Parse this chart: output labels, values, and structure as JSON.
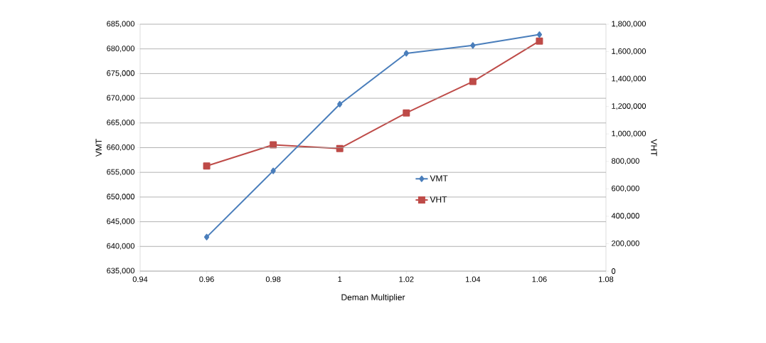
{
  "chart_data": {
    "type": "line",
    "xlabel": "Deman Multiplier",
    "ylabel": "VMT",
    "y2label": "VHT",
    "x": [
      0.96,
      0.98,
      1,
      1.02,
      1.04,
      1.06
    ],
    "series": [
      {
        "name": "VMT",
        "color": "#4a7ebb",
        "marker": "diamond",
        "values": [
          641900,
          655300,
          668800,
          679100,
          680700,
          682900
        ]
      },
      {
        "name": "VHT",
        "color": "#be4b48",
        "marker": "square",
        "axis": "y2",
        "values": [
          766000,
          921000,
          894000,
          1153000,
          1382000,
          1677000
        ]
      }
    ],
    "xlim": [
      0.94,
      1.08
    ],
    "xticks": [
      0.94,
      0.96,
      0.98,
      1,
      1.02,
      1.04,
      1.06,
      1.08
    ],
    "ylim": [
      635000,
      685000
    ],
    "yticks": [
      {
        "value": 635000,
        "label": "635,000"
      },
      {
        "value": 640000,
        "label": "640,000"
      },
      {
        "value": 645000,
        "label": "645,000"
      },
      {
        "value": 650000,
        "label": "650,000"
      },
      {
        "value": 655000,
        "label": "655,000"
      },
      {
        "value": 660000,
        "label": "660,000"
      },
      {
        "value": 665000,
        "label": "665,000"
      },
      {
        "value": 670000,
        "label": "670,000"
      },
      {
        "value": 675000,
        "label": "675,000"
      },
      {
        "value": 680000,
        "label": "680,000"
      },
      {
        "value": 685000,
        "label": "685,000"
      }
    ],
    "y2lim": [
      0,
      1800000
    ],
    "y2ticks": [
      0,
      {
        "value": 200000,
        "label": "200,000"
      },
      {
        "value": 400000,
        "label": "400,000"
      },
      {
        "value": 600000,
        "label": "600,000"
      },
      {
        "value": 800000,
        "label": "800,000"
      },
      {
        "value": 1000000,
        "label": "1,000,000"
      },
      {
        "value": 1200000,
        "label": "1,200,000"
      },
      {
        "value": 1400000,
        "label": "1,400,000"
      },
      {
        "value": 1600000,
        "label": "1,600,000"
      },
      {
        "value": 1800000,
        "label": "1,800,000"
      }
    ],
    "grid": "y",
    "legend": "right",
    "line_style": "solid"
  }
}
